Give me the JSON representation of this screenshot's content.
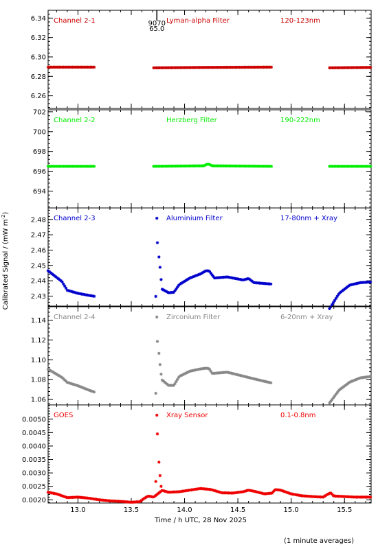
{
  "chart_data": {
    "type": "scatter",
    "xlabel": "Time / h UTC, 28 Nov 2025",
    "ylabel": "Calibrated Signal / (mW m",
    "ylabel_sup": "-2",
    "ylabel_close": ")",
    "xlim": [
      12.72,
      15.75
    ],
    "xticks": [
      "13.0",
      "13.5",
      "14.0",
      "14.5",
      "15.0",
      "15.5"
    ],
    "xtick_values": [
      13.0,
      13.5,
      14.0,
      14.5,
      15.0,
      15.5
    ],
    "footnote": "(1 minute averages)",
    "marker": "*",
    "orbit_marker": {
      "x": 13.74,
      "lines": [
        "9070",
        "65.0"
      ]
    },
    "panels": [
      {
        "name": "Channel 2-1",
        "filter": "Lyman-alpha Filter",
        "band": "120-123nm",
        "color": "#cc0000",
        "ylim": [
          6.247,
          6.348
        ],
        "yticks": [
          "6.26",
          "6.28",
          "6.30",
          "6.32",
          "6.34"
        ],
        "ytick_values": [
          6.26,
          6.28,
          6.3,
          6.32,
          6.34
        ],
        "segments": [
          {
            "start": 12.72,
            "end": 13.16,
            "anchors": [
              [
                12.72,
                6.2895
              ],
              [
                13.16,
                6.2895
              ]
            ]
          },
          {
            "start": 13.71,
            "end": 14.82,
            "anchors": [
              [
                13.71,
                6.2888
              ],
              [
                14.2,
                6.2892
              ],
              [
                14.82,
                6.2895
              ]
            ]
          },
          {
            "start": 15.36,
            "end": 15.75,
            "anchors": [
              [
                15.36,
                6.2888
              ],
              [
                15.75,
                6.2892
              ]
            ]
          }
        ],
        "points": []
      },
      {
        "name": "Channel 2-2",
        "filter": "Herzberg Filter",
        "band": "190-222nm",
        "color": "#00ee00",
        "ylim": [
          692.3,
          702.2
        ],
        "yticks": [
          "694",
          "696",
          "698",
          "700",
          "702"
        ],
        "ytick_values": [
          694,
          696,
          698,
          700,
          702
        ],
        "segments": [
          {
            "start": 12.72,
            "end": 13.16,
            "anchors": [
              [
                12.72,
                696.5
              ],
              [
                13.16,
                696.5
              ]
            ]
          },
          {
            "start": 13.71,
            "end": 14.82,
            "anchors": [
              [
                13.71,
                696.5
              ],
              [
                14.18,
                696.55
              ],
              [
                14.22,
                696.75
              ],
              [
                14.26,
                696.55
              ],
              [
                14.82,
                696.5
              ]
            ]
          },
          {
            "start": 15.36,
            "end": 15.75,
            "anchors": [
              [
                15.36,
                696.5
              ],
              [
                15.75,
                696.5
              ]
            ]
          }
        ],
        "points": []
      },
      {
        "name": "Channel 2-3",
        "filter": "Aluminium Filter",
        "band": "17-80nm + Xray",
        "color": "#0000cc",
        "ylim": [
          2.4235,
          2.4875
        ],
        "yticks": [
          "2.43",
          "2.44",
          "2.45",
          "2.46",
          "2.47",
          "2.48"
        ],
        "ytick_values": [
          2.43,
          2.44,
          2.45,
          2.46,
          2.47,
          2.48
        ],
        "segments": [
          {
            "start": 12.72,
            "end": 13.16,
            "anchors": [
              [
                12.72,
                2.4465
              ],
              [
                12.85,
                2.4395
              ],
              [
                12.9,
                2.4338
              ],
              [
                13.0,
                2.4318
              ],
              [
                13.1,
                2.4305
              ],
              [
                13.16,
                2.4298
              ]
            ]
          },
          {
            "start": 13.79,
            "end": 14.82,
            "anchors": [
              [
                13.79,
                2.4345
              ],
              [
                13.85,
                2.4322
              ],
              [
                13.9,
                2.4325
              ],
              [
                13.95,
                2.4375
              ],
              [
                14.05,
                2.4418
              ],
              [
                14.15,
                2.4445
              ],
              [
                14.2,
                2.4465
              ],
              [
                14.23,
                2.4465
              ],
              [
                14.28,
                2.4418
              ],
              [
                14.4,
                2.4425
              ],
              [
                14.55,
                2.4405
              ],
              [
                14.6,
                2.4415
              ],
              [
                14.65,
                2.4388
              ],
              [
                14.82,
                2.4378
              ]
            ]
          },
          {
            "start": 15.36,
            "end": 15.75,
            "anchors": [
              [
                15.36,
                2.4218
              ],
              [
                15.45,
                2.4318
              ],
              [
                15.55,
                2.4372
              ],
              [
                15.65,
                2.4388
              ],
              [
                15.75,
                2.4392
              ]
            ]
          }
        ],
        "points": [
          [
            13.73,
            2.4298
          ],
          [
            13.745,
            2.4648
          ],
          [
            13.76,
            2.4555
          ],
          [
            13.77,
            2.4488
          ],
          [
            13.78,
            2.4408
          ]
        ]
      },
      {
        "name": "Channel 2-4",
        "filter": "Zirconium Filter",
        "band": "6-20nm + Xray",
        "color": "#888888",
        "ylim": [
          1.0545,
          1.1535
        ],
        "yticks": [
          "1.06",
          "1.08",
          "1.10",
          "1.12",
          "1.14"
        ],
        "ytick_values": [
          1.06,
          1.08,
          1.1,
          1.12,
          1.14
        ],
        "segments": [
          {
            "start": 12.72,
            "end": 13.16,
            "anchors": [
              [
                12.72,
                1.0905
              ],
              [
                12.85,
                1.0822
              ],
              [
                12.9,
                1.0772
              ],
              [
                13.0,
                1.0738
              ],
              [
                13.1,
                1.0695
              ],
              [
                13.16,
                1.0672
              ]
            ]
          },
          {
            "start": 13.79,
            "end": 14.82,
            "anchors": [
              [
                13.79,
                1.0795
              ],
              [
                13.85,
                1.0742
              ],
              [
                13.9,
                1.0742
              ],
              [
                13.95,
                1.0832
              ],
              [
                14.05,
                1.0885
              ],
              [
                14.15,
                1.0908
              ],
              [
                14.2,
                1.0915
              ],
              [
                14.23,
                1.0912
              ],
              [
                14.26,
                1.0862
              ],
              [
                14.4,
                1.0875
              ],
              [
                14.55,
                1.0835
              ],
              [
                14.65,
                1.0808
              ],
              [
                14.82,
                1.0765
              ]
            ]
          },
          {
            "start": 15.36,
            "end": 15.75,
            "anchors": [
              [
                15.36,
                1.0565
              ],
              [
                15.45,
                1.0695
              ],
              [
                15.55,
                1.0775
              ],
              [
                15.65,
                1.0818
              ],
              [
                15.75,
                1.0832
              ]
            ]
          }
        ],
        "points": [
          [
            13.73,
            1.0662
          ],
          [
            13.745,
            1.1185
          ],
          [
            13.76,
            1.1065
          ],
          [
            13.77,
            1.0952
          ],
          [
            13.78,
            1.0855
          ]
        ]
      },
      {
        "name": "GOES",
        "filter": "Xray Sensor",
        "band": "0.1-0.8nm",
        "color": "#ee0000",
        "ylim": [
          0.00188,
          0.00553
        ],
        "yticks": [
          "0.0020",
          "0.0025",
          "0.0030",
          "0.0035",
          "0.0040",
          "0.0045",
          "0.0050"
        ],
        "ytick_values": [
          0.002,
          0.0025,
          0.003,
          0.0035,
          0.004,
          0.0045,
          0.005
        ],
        "segments": [
          {
            "start": 12.72,
            "end": 15.75,
            "anchors": [
              [
                12.72,
                0.00228
              ],
              [
                12.8,
                0.00222
              ],
              [
                12.9,
                0.00208
              ],
              [
                13.0,
                0.0021
              ],
              [
                13.1,
                0.00206
              ],
              [
                13.2,
                0.002
              ],
              [
                13.3,
                0.00196
              ],
              [
                13.4,
                0.00194
              ],
              [
                13.5,
                0.00191
              ],
              [
                13.58,
                0.00193
              ],
              [
                13.62,
                0.00205
              ],
              [
                13.66,
                0.00214
              ],
              [
                13.71,
                0.0021
              ],
              [
                13.79,
                0.00235
              ],
              [
                13.85,
                0.00228
              ],
              [
                13.95,
                0.0023
              ],
              [
                14.05,
                0.00236
              ],
              [
                14.15,
                0.00242
              ],
              [
                14.25,
                0.00238
              ],
              [
                14.35,
                0.00226
              ],
              [
                14.45,
                0.00225
              ],
              [
                14.55,
                0.0023
              ],
              [
                14.6,
                0.00236
              ],
              [
                14.65,
                0.00232
              ],
              [
                14.75,
                0.00222
              ],
              [
                14.82,
                0.00225
              ],
              [
                14.85,
                0.00238
              ],
              [
                14.9,
                0.00236
              ],
              [
                15.0,
                0.00222
              ],
              [
                15.1,
                0.00215
              ],
              [
                15.2,
                0.00212
              ],
              [
                15.3,
                0.0021
              ],
              [
                15.34,
                0.0022
              ],
              [
                15.37,
                0.00226
              ],
              [
                15.4,
                0.00214
              ],
              [
                15.5,
                0.00212
              ],
              [
                15.6,
                0.0021
              ],
              [
                15.75,
                0.0021
              ]
            ]
          }
        ],
        "points": [
          [
            13.73,
            0.00268
          ],
          [
            13.745,
            0.00445
          ],
          [
            13.76,
            0.0034
          ],
          [
            13.77,
            0.0029
          ],
          [
            13.78,
            0.0025
          ]
        ]
      }
    ]
  }
}
